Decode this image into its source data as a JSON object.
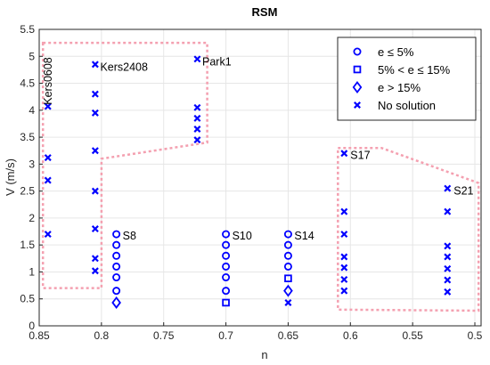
{
  "chart_data": {
    "type": "scatter",
    "title": "RSM",
    "xlabel": "n",
    "ylabel": "V (m/s)",
    "xlim": [
      0.85,
      0.495
    ],
    "x_reversed": true,
    "ylim": [
      0,
      5.5
    ],
    "xticks": [
      0.85,
      0.8,
      0.75,
      0.7,
      0.65,
      0.6,
      0.55,
      0.5
    ],
    "xtick_labels": [
      "0.85",
      "0.8",
      "0.75",
      "0.7",
      "0.65",
      "0.6",
      "0.55",
      "0.5"
    ],
    "yticks": [
      0,
      0.5,
      1,
      1.5,
      2,
      2.5,
      3,
      3.5,
      4,
      4.5,
      5,
      5.5
    ],
    "ytick_labels": [
      "0",
      "0.5",
      "1",
      "1.5",
      "2",
      "2.5",
      "3",
      "3.5",
      "4",
      "4.5",
      "5",
      "5.5"
    ],
    "grid": true,
    "legend_position": "top-right",
    "marker_color": "#0000ff",
    "region_color": "#f4a0b0",
    "series": [
      {
        "name": "e ≤ 5%",
        "marker": "circle",
        "points": [
          [
            0.788,
            1.7
          ],
          [
            0.788,
            1.5
          ],
          [
            0.788,
            1.3
          ],
          [
            0.788,
            1.1
          ],
          [
            0.788,
            0.9
          ],
          [
            0.788,
            0.65
          ],
          [
            0.7,
            1.7
          ],
          [
            0.7,
            1.5
          ],
          [
            0.7,
            1.3
          ],
          [
            0.7,
            1.1
          ],
          [
            0.7,
            0.9
          ],
          [
            0.7,
            0.65
          ],
          [
            0.65,
            1.7
          ],
          [
            0.65,
            1.5
          ],
          [
            0.65,
            1.3
          ],
          [
            0.65,
            1.1
          ]
        ]
      },
      {
        "name": "5% < e ≤ 15%",
        "marker": "square",
        "points": [
          [
            0.7,
            0.43
          ],
          [
            0.65,
            0.88
          ]
        ]
      },
      {
        "name": "e > 15%",
        "marker": "diamond",
        "points": [
          [
            0.788,
            0.43
          ],
          [
            0.65,
            0.65
          ]
        ]
      },
      {
        "name": "No solution",
        "marker": "x",
        "points": [
          [
            0.843,
            4.07
          ],
          [
            0.843,
            3.12
          ],
          [
            0.843,
            2.7
          ],
          [
            0.843,
            1.7
          ],
          [
            0.805,
            4.85
          ],
          [
            0.805,
            4.3
          ],
          [
            0.805,
            3.95
          ],
          [
            0.805,
            3.25
          ],
          [
            0.805,
            2.5
          ],
          [
            0.805,
            1.8
          ],
          [
            0.805,
            1.25
          ],
          [
            0.805,
            1.02
          ],
          [
            0.723,
            4.95
          ],
          [
            0.723,
            4.05
          ],
          [
            0.723,
            3.85
          ],
          [
            0.723,
            3.65
          ],
          [
            0.723,
            3.45
          ],
          [
            0.65,
            0.43
          ],
          [
            0.605,
            3.2
          ],
          [
            0.605,
            2.12
          ],
          [
            0.605,
            1.7
          ],
          [
            0.605,
            1.28
          ],
          [
            0.605,
            1.08
          ],
          [
            0.605,
            0.86
          ],
          [
            0.605,
            0.65
          ],
          [
            0.522,
            2.55
          ],
          [
            0.522,
            2.12
          ],
          [
            0.522,
            1.48
          ],
          [
            0.522,
            1.28
          ],
          [
            0.522,
            1.06
          ],
          [
            0.522,
            0.85
          ],
          [
            0.522,
            0.63
          ]
        ]
      }
    ],
    "annotations": [
      {
        "text": "Kers0608",
        "x": 0.843,
        "y": 4.1,
        "rotate": -90
      },
      {
        "text": "Kers2408",
        "x": 0.801,
        "y": 4.8
      },
      {
        "text": "Park1",
        "x": 0.719,
        "y": 4.9
      },
      {
        "text": "S8",
        "x": 0.783,
        "y": 1.67
      },
      {
        "text": "S10",
        "x": 0.695,
        "y": 1.67
      },
      {
        "text": "S14",
        "x": 0.645,
        "y": 1.67
      },
      {
        "text": "S17",
        "x": 0.6,
        "y": 3.16
      },
      {
        "text": "S21",
        "x": 0.517,
        "y": 2.5
      }
    ],
    "regions": [
      {
        "name": "region-kers-park",
        "points": [
          [
            0.847,
            5.25
          ],
          [
            0.715,
            5.25
          ],
          [
            0.715,
            3.4
          ],
          [
            0.8,
            3.1
          ],
          [
            0.8,
            0.7
          ],
          [
            0.847,
            0.7
          ]
        ]
      },
      {
        "name": "region-s17-s21",
        "points": [
          [
            0.61,
            3.3
          ],
          [
            0.575,
            3.3
          ],
          [
            0.497,
            2.65
          ],
          [
            0.497,
            0.28
          ],
          [
            0.61,
            0.3
          ]
        ]
      }
    ]
  }
}
